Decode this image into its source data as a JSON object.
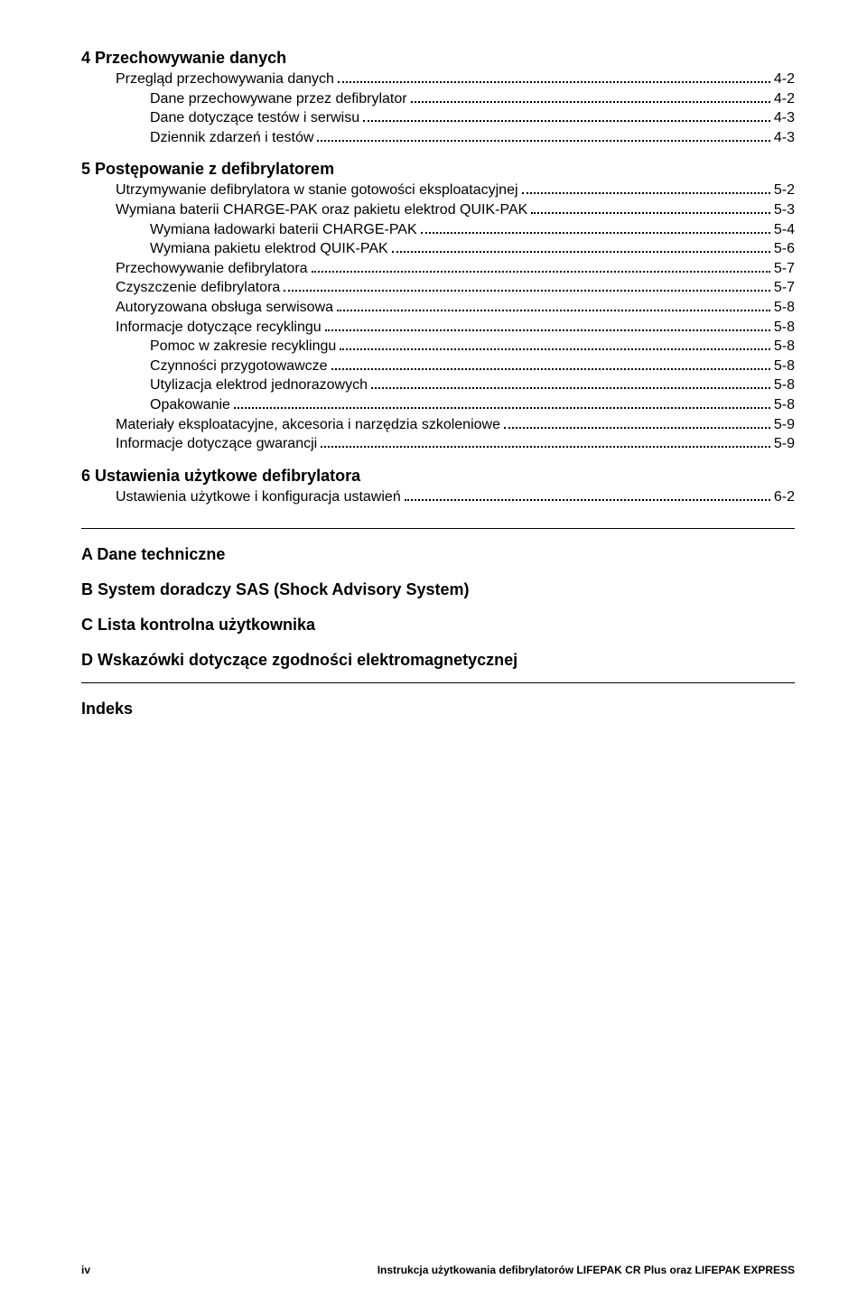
{
  "sections": [
    {
      "title": "4 Przechowywanie danych",
      "items": [
        {
          "label": "Przegląd przechowywania danych",
          "page": "4-2",
          "lvl": 1
        },
        {
          "label": "Dane przechowywane przez defibrylator",
          "page": "4-2",
          "lvl": 2
        },
        {
          "label": "Dane dotyczące testów i serwisu",
          "page": "4-3",
          "lvl": 2
        },
        {
          "label": "Dziennik zdarzeń i testów",
          "page": "4-3",
          "lvl": 2
        }
      ]
    },
    {
      "title": "5 Postępowanie z defibrylatorem",
      "items": [
        {
          "label": "Utrzymywanie defibrylatora w stanie gotowości eksploatacyjnej",
          "page": "5-2",
          "lvl": 1
        },
        {
          "label": "Wymiana baterii CHARGE-PAK oraz pakietu elektrod QUIK-PAK",
          "page": "5-3",
          "lvl": 1
        },
        {
          "label": "Wymiana ładowarki baterii CHARGE-PAK",
          "page": "5-4",
          "lvl": 2
        },
        {
          "label": "Wymiana pakietu elektrod QUIK-PAK",
          "page": "5-6",
          "lvl": 2
        },
        {
          "label": "Przechowywanie defibrylatora",
          "page": "5-7",
          "lvl": 1
        },
        {
          "label": "Czyszczenie defibrylatora",
          "page": "5-7",
          "lvl": 1
        },
        {
          "label": "Autoryzowana obsługa serwisowa",
          "page": "5-8",
          "lvl": 1
        },
        {
          "label": "Informacje dotyczące recyklingu",
          "page": "5-8",
          "lvl": 1
        },
        {
          "label": "Pomoc w zakresie recyklingu",
          "page": "5-8",
          "lvl": 2
        },
        {
          "label": "Czynności przygotowawcze",
          "page": "5-8",
          "lvl": 2
        },
        {
          "label": "Utylizacja elektrod jednorazowych",
          "page": "5-8",
          "lvl": 2
        },
        {
          "label": "Opakowanie",
          "page": "5-8",
          "lvl": 2
        },
        {
          "label": "Materiały eksploatacyjne, akcesoria i narzędzia szkoleniowe",
          "page": "5-9",
          "lvl": 1
        },
        {
          "label": "Informacje dotyczące gwarancji",
          "page": "5-9",
          "lvl": 1
        }
      ]
    },
    {
      "title": "6 Ustawienia użytkowe defibrylatora",
      "items": [
        {
          "label": "Ustawienia użytkowe i konfiguracja ustawień",
          "page": "6-2",
          "lvl": 1
        }
      ]
    }
  ],
  "appendices": [
    "A Dane techniczne",
    "B System doradczy SAS (Shock Advisory System)",
    "C Lista kontrolna użytkownika",
    "D Wskazówki dotyczące zgodności elektromagnetycznej",
    "Indeks"
  ],
  "footer": {
    "page_num": "iv",
    "text": "Instrukcja użytkowania defibrylatorów LIFEPAK CR Plus oraz LIFEPAK EXPRESS"
  }
}
